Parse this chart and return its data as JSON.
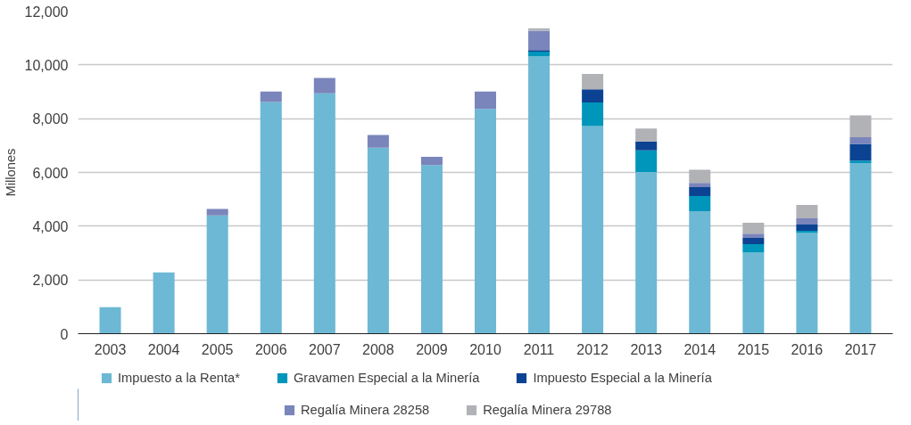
{
  "chart_data": {
    "type": "bar",
    "stacked": true,
    "ylabel": "Millones",
    "categories": [
      "2003",
      "2004",
      "2005",
      "2006",
      "2007",
      "2008",
      "2009",
      "2010",
      "2011",
      "2012",
      "2013",
      "2014",
      "2015",
      "2016",
      "2017"
    ],
    "ylim": [
      0,
      12000
    ],
    "yticks": [
      {
        "value": 0,
        "label": "0"
      },
      {
        "value": 2000,
        "label": "2,000"
      },
      {
        "value": 4000,
        "label": "4,000"
      },
      {
        "value": 6000,
        "label": "6,000"
      },
      {
        "value": 8000,
        "label": "8,000"
      },
      {
        "value": 10000,
        "label": "10,000"
      },
      {
        "value": 12000,
        "label": "12,000"
      }
    ],
    "grid": "y",
    "legend": "bottom",
    "series": [
      {
        "name": "Impuesto a la Renta*",
        "color": "#6db8d4",
        "values": [
          990,
          2280,
          4400,
          8620,
          8940,
          6920,
          6270,
          8360,
          10320,
          7720,
          6020,
          4560,
          3020,
          3750,
          6350
        ]
      },
      {
        "name": "Gravamen Especial a la Minería",
        "color": "#0095bb",
        "values": [
          0,
          0,
          0,
          0,
          0,
          0,
          0,
          0,
          170,
          880,
          800,
          560,
          310,
          80,
          90
        ]
      },
      {
        "name": "Impuesto Especial a la Minería",
        "color": "#0b4392",
        "values": [
          0,
          0,
          0,
          0,
          0,
          0,
          0,
          0,
          60,
          490,
          330,
          330,
          230,
          230,
          620
        ]
      },
      {
        "name": "Regalía Minera 28258",
        "color": "#7a85bb",
        "values": [
          0,
          0,
          240,
          390,
          570,
          470,
          310,
          650,
          720,
          0,
          0,
          160,
          160,
          230,
          250
        ]
      },
      {
        "name": "Regalía Minera 29788",
        "color": "#b1b2b6",
        "values": [
          0,
          0,
          0,
          0,
          0,
          0,
          0,
          0,
          90,
          570,
          480,
          490,
          410,
          500,
          810
        ]
      }
    ]
  }
}
